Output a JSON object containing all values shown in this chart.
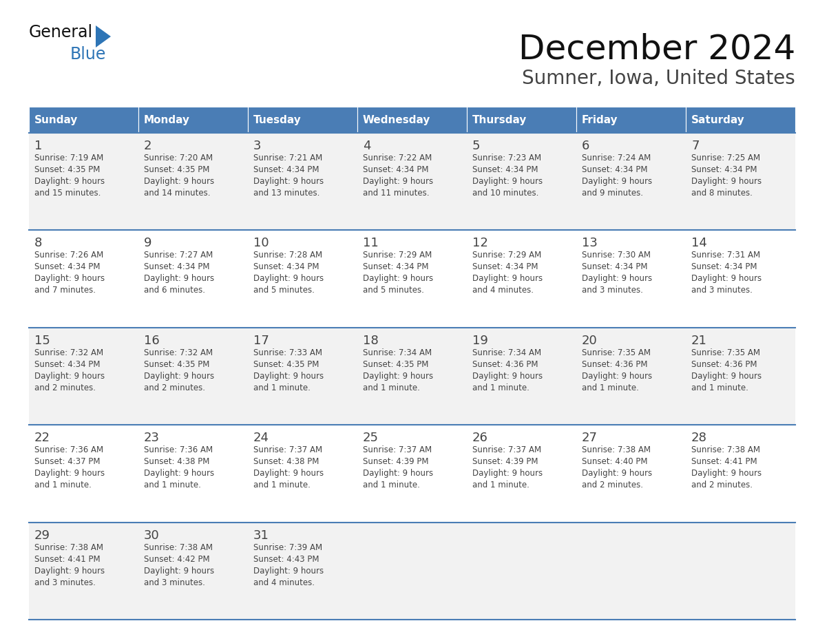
{
  "title": "December 2024",
  "subtitle": "Sumner, Iowa, United States",
  "header_bg_color": "#4A7DB5",
  "header_text_color": "#FFFFFF",
  "cell_bg_color_odd": "#F2F2F2",
  "cell_bg_color_even": "#FFFFFF",
  "separator_color": "#4A7DB5",
  "text_color": "#444444",
  "days_of_week": [
    "Sunday",
    "Monday",
    "Tuesday",
    "Wednesday",
    "Thursday",
    "Friday",
    "Saturday"
  ],
  "weeks": [
    [
      {
        "day": "1",
        "sunrise": "7:19 AM",
        "sunset": "4:35 PM",
        "daylight": "9 hours\nand 15 minutes."
      },
      {
        "day": "2",
        "sunrise": "7:20 AM",
        "sunset": "4:35 PM",
        "daylight": "9 hours\nand 14 minutes."
      },
      {
        "day": "3",
        "sunrise": "7:21 AM",
        "sunset": "4:34 PM",
        "daylight": "9 hours\nand 13 minutes."
      },
      {
        "day": "4",
        "sunrise": "7:22 AM",
        "sunset": "4:34 PM",
        "daylight": "9 hours\nand 11 minutes."
      },
      {
        "day": "5",
        "sunrise": "7:23 AM",
        "sunset": "4:34 PM",
        "daylight": "9 hours\nand 10 minutes."
      },
      {
        "day": "6",
        "sunrise": "7:24 AM",
        "sunset": "4:34 PM",
        "daylight": "9 hours\nand 9 minutes."
      },
      {
        "day": "7",
        "sunrise": "7:25 AM",
        "sunset": "4:34 PM",
        "daylight": "9 hours\nand 8 minutes."
      }
    ],
    [
      {
        "day": "8",
        "sunrise": "7:26 AM",
        "sunset": "4:34 PM",
        "daylight": "9 hours\nand 7 minutes."
      },
      {
        "day": "9",
        "sunrise": "7:27 AM",
        "sunset": "4:34 PM",
        "daylight": "9 hours\nand 6 minutes."
      },
      {
        "day": "10",
        "sunrise": "7:28 AM",
        "sunset": "4:34 PM",
        "daylight": "9 hours\nand 5 minutes."
      },
      {
        "day": "11",
        "sunrise": "7:29 AM",
        "sunset": "4:34 PM",
        "daylight": "9 hours\nand 5 minutes."
      },
      {
        "day": "12",
        "sunrise": "7:29 AM",
        "sunset": "4:34 PM",
        "daylight": "9 hours\nand 4 minutes."
      },
      {
        "day": "13",
        "sunrise": "7:30 AM",
        "sunset": "4:34 PM",
        "daylight": "9 hours\nand 3 minutes."
      },
      {
        "day": "14",
        "sunrise": "7:31 AM",
        "sunset": "4:34 PM",
        "daylight": "9 hours\nand 3 minutes."
      }
    ],
    [
      {
        "day": "15",
        "sunrise": "7:32 AM",
        "sunset": "4:34 PM",
        "daylight": "9 hours\nand 2 minutes."
      },
      {
        "day": "16",
        "sunrise": "7:32 AM",
        "sunset": "4:35 PM",
        "daylight": "9 hours\nand 2 minutes."
      },
      {
        "day": "17",
        "sunrise": "7:33 AM",
        "sunset": "4:35 PM",
        "daylight": "9 hours\nand 1 minute."
      },
      {
        "day": "18",
        "sunrise": "7:34 AM",
        "sunset": "4:35 PM",
        "daylight": "9 hours\nand 1 minute."
      },
      {
        "day": "19",
        "sunrise": "7:34 AM",
        "sunset": "4:36 PM",
        "daylight": "9 hours\nand 1 minute."
      },
      {
        "day": "20",
        "sunrise": "7:35 AM",
        "sunset": "4:36 PM",
        "daylight": "9 hours\nand 1 minute."
      },
      {
        "day": "21",
        "sunrise": "7:35 AM",
        "sunset": "4:36 PM",
        "daylight": "9 hours\nand 1 minute."
      }
    ],
    [
      {
        "day": "22",
        "sunrise": "7:36 AM",
        "sunset": "4:37 PM",
        "daylight": "9 hours\nand 1 minute."
      },
      {
        "day": "23",
        "sunrise": "7:36 AM",
        "sunset": "4:38 PM",
        "daylight": "9 hours\nand 1 minute."
      },
      {
        "day": "24",
        "sunrise": "7:37 AM",
        "sunset": "4:38 PM",
        "daylight": "9 hours\nand 1 minute."
      },
      {
        "day": "25",
        "sunrise": "7:37 AM",
        "sunset": "4:39 PM",
        "daylight": "9 hours\nand 1 minute."
      },
      {
        "day": "26",
        "sunrise": "7:37 AM",
        "sunset": "4:39 PM",
        "daylight": "9 hours\nand 1 minute."
      },
      {
        "day": "27",
        "sunrise": "7:38 AM",
        "sunset": "4:40 PM",
        "daylight": "9 hours\nand 2 minutes."
      },
      {
        "day": "28",
        "sunrise": "7:38 AM",
        "sunset": "4:41 PM",
        "daylight": "9 hours\nand 2 minutes."
      }
    ],
    [
      {
        "day": "29",
        "sunrise": "7:38 AM",
        "sunset": "4:41 PM",
        "daylight": "9 hours\nand 3 minutes."
      },
      {
        "day": "30",
        "sunrise": "7:38 AM",
        "sunset": "4:42 PM",
        "daylight": "9 hours\nand 3 minutes."
      },
      {
        "day": "31",
        "sunrise": "7:39 AM",
        "sunset": "4:43 PM",
        "daylight": "9 hours\nand 4 minutes."
      },
      null,
      null,
      null,
      null
    ]
  ],
  "logo_text1": "General",
  "logo_text2": "Blue",
  "logo_color1": "#111111",
  "logo_color2": "#2E75B6",
  "logo_triangle_color": "#2E75B6",
  "title_fontsize": 36,
  "subtitle_fontsize": 20,
  "header_fontsize": 11,
  "day_num_fontsize": 13,
  "cell_fontsize": 8.5
}
